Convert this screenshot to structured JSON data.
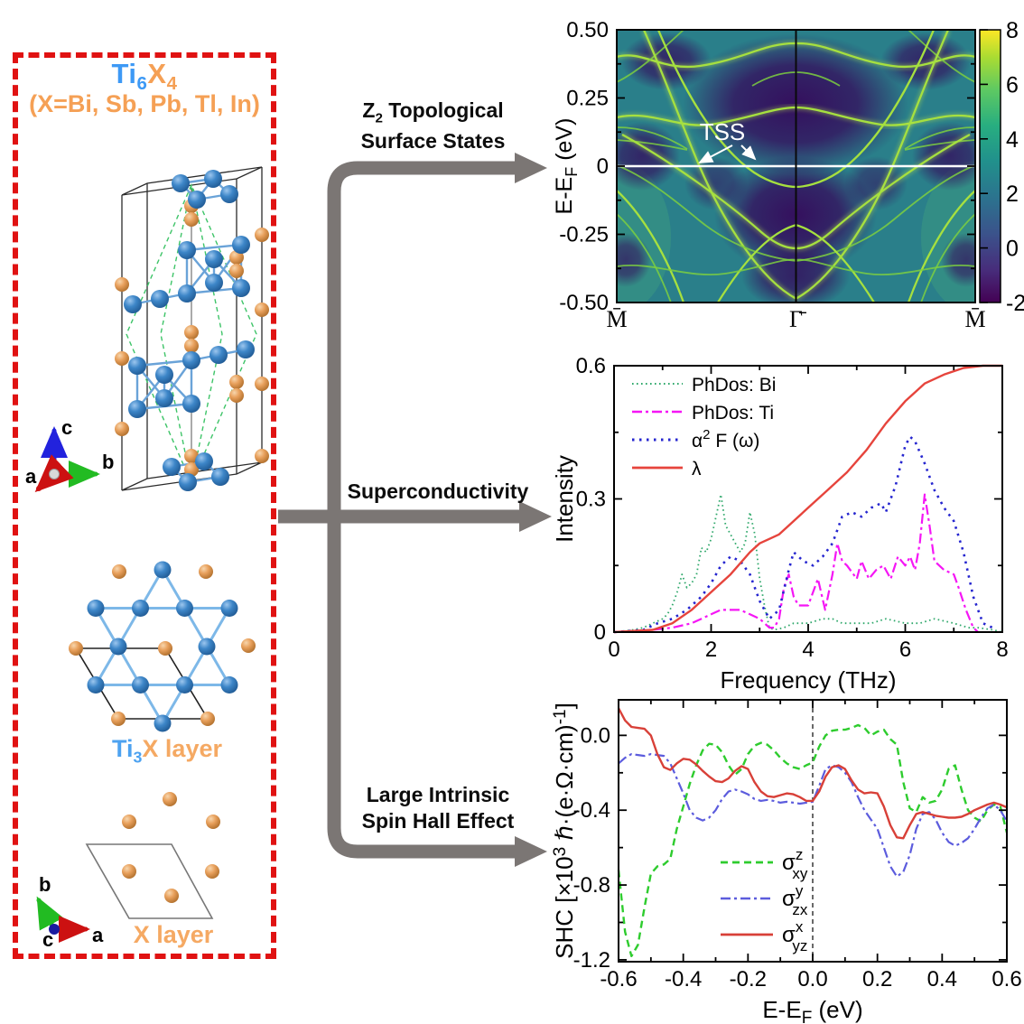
{
  "left_panel": {
    "box_color": "#e01212",
    "title_parts": [
      {
        "t": "Ti",
        "color": "#3d99f5"
      },
      {
        "t": "6",
        "color": "#3d99f5",
        "sub": true
      },
      {
        "t": "X",
        "color": "#f5a055"
      },
      {
        "t": "4",
        "color": "#f5a055",
        "sub": true
      }
    ],
    "subtitle": "(X=Bi, Sb, Pb, Tl, In)",
    "subtitle_color": "#f5a055",
    "triad3d": {
      "a": "a",
      "b": "b",
      "c": "c"
    },
    "triad2d": {
      "a": "a",
      "b": "b",
      "c": "c"
    },
    "ti3x_label_parts": [
      {
        "t": "Ti",
        "color": "#4da2f0"
      },
      {
        "t": "3",
        "color": "#4da2f0",
        "sub": true
      },
      {
        "t": "X layer",
        "color": "#f5a963"
      }
    ],
    "x_layer_label": "X layer",
    "x_layer_label_color": "#f5a963",
    "atom_colors": {
      "ti": "#3d86c8",
      "x": "#e8a05c"
    }
  },
  "arrows": {
    "color": "#7b7674",
    "top_label_parts": [
      {
        "t": "Z"
      },
      {
        "t": "2",
        "sub": true
      },
      {
        "t": " Topological"
      }
    ],
    "top_label_line2": "Surface States",
    "middle_label": "Superconductivity",
    "bottom_label_line1": "Large Intrinsic",
    "bottom_label_line2": "Spin Hall Effect"
  },
  "chart_data": [
    {
      "id": "band",
      "type": "heatmap",
      "description": "Surface spectral function along M̄–Γ̄–M̄ showing topological surface states (TSS) crossing the Fermi level; dark purple = low intensity, yellow-green = high intensity bands",
      "ylabel_parts": [
        {
          "t": "E-E"
        },
        {
          "t": "F",
          "dy": 6,
          "fs": 0.72
        },
        {
          "t": " (eV)",
          "dy": -6
        }
      ],
      "ylim": [
        -0.5,
        0.5
      ],
      "ytick_values": [
        0.5,
        0.25,
        0,
        -0.25,
        -0.5
      ],
      "ytick_labels": [
        "0.50",
        "0.25",
        "0",
        "-0.25",
        "-0.50"
      ],
      "yminor": [
        0.375,
        0.125,
        -0.125,
        -0.375
      ],
      "xtick_labels": [
        "M̄",
        "Γ̄",
        "M̄"
      ],
      "fermi_level_line": 0,
      "annotation": "TSS",
      "colorbar": {
        "range": [
          -2,
          8
        ],
        "tick_values": [
          8,
          6,
          4,
          2,
          0,
          -2
        ],
        "tick_labels": [
          "8",
          "6",
          "4",
          "2",
          "0",
          "-2"
        ],
        "colormap": "viridis"
      }
    },
    {
      "id": "phonon",
      "type": "line",
      "xlabel": "Frequency (THz)",
      "ylabel": "Intensity",
      "xlim": [
        0,
        8
      ],
      "ylim": [
        0,
        0.6
      ],
      "xtick_values": [
        0,
        2,
        4,
        6,
        8
      ],
      "xtick_labels": [
        "0",
        "2",
        "4",
        "6",
        "8"
      ],
      "xminor": [
        1,
        3,
        5,
        7
      ],
      "ytick_values": [
        0,
        0.3,
        0.6
      ],
      "ytick_labels": [
        "0",
        "0.3",
        "0.6"
      ],
      "yminor": [
        0.15,
        0.45
      ],
      "legend_position": "top-left",
      "series": [
        {
          "name": "PhDos: Bi",
          "name_parts": [
            {
              "t": "PhDos: Bi"
            }
          ],
          "color": "#2fa86b",
          "style": "dotted-fine",
          "x": [
            0,
            0.4,
            0.6,
            0.8,
            1.0,
            1.1,
            1.2,
            1.3,
            1.4,
            1.5,
            1.6,
            1.7,
            1.8,
            1.9,
            2.0,
            2.1,
            2.2,
            2.3,
            2.4,
            2.5,
            2.6,
            2.7,
            2.8,
            2.9,
            3.0,
            3.1,
            3.2,
            3.3,
            3.5,
            3.7,
            4.0,
            4.3,
            4.5,
            4.7,
            5.0,
            5.3,
            5.6,
            6.0,
            6.3,
            6.6,
            7.0,
            7.3,
            7.5,
            7.8,
            8.0
          ],
          "y": [
            0,
            0.005,
            0.01,
            0.02,
            0.03,
            0.04,
            0.06,
            0.09,
            0.13,
            0.1,
            0.11,
            0.13,
            0.19,
            0.18,
            0.21,
            0.26,
            0.31,
            0.24,
            0.22,
            0.2,
            0.18,
            0.2,
            0.27,
            0.22,
            0.12,
            0.06,
            0.01,
            0.005,
            0.01,
            0.02,
            0.02,
            0.03,
            0.03,
            0.02,
            0.02,
            0.02,
            0.03,
            0.02,
            0.02,
            0.03,
            0.02,
            0.01,
            0.01,
            0.005,
            0
          ]
        },
        {
          "name": "PhDos: Ti",
          "name_parts": [
            {
              "t": "PhDos: Ti"
            }
          ],
          "color": "#f516f5",
          "style": "dashdot",
          "x": [
            0,
            0.8,
            1.2,
            1.6,
            2.0,
            2.2,
            2.4,
            2.6,
            2.8,
            3.0,
            3.2,
            3.3,
            3.4,
            3.5,
            3.6,
            3.7,
            3.8,
            4.0,
            4.1,
            4.2,
            4.35,
            4.5,
            4.6,
            4.7,
            4.8,
            5.0,
            5.1,
            5.25,
            5.4,
            5.55,
            5.7,
            5.85,
            6.0,
            6.1,
            6.2,
            6.3,
            6.4,
            6.5,
            6.6,
            6.8,
            7.0,
            7.1,
            7.25,
            7.4,
            7.5
          ],
          "y": [
            0,
            0.005,
            0.01,
            0.02,
            0.04,
            0.05,
            0.05,
            0.05,
            0.04,
            0.03,
            0.01,
            0.01,
            0.03,
            0.1,
            0.13,
            0.08,
            0.06,
            0.06,
            0.09,
            0.12,
            0.05,
            0.13,
            0.2,
            0.16,
            0.15,
            0.12,
            0.16,
            0.12,
            0.14,
            0.15,
            0.12,
            0.17,
            0.15,
            0.17,
            0.14,
            0.2,
            0.31,
            0.24,
            0.16,
            0.14,
            0.13,
            0.1,
            0.05,
            0.01,
            0
          ]
        },
        {
          "name": "α² F (ω)",
          "name_parts": [
            {
              "t": "α"
            },
            {
              "t": "2",
              "dy": -9,
              "fs": 0.7
            },
            {
              "t": " F (ω)",
              "dy": 9
            }
          ],
          "color": "#2525cf",
          "style": "dotted",
          "x": [
            0,
            0.6,
            0.9,
            1.2,
            1.5,
            1.8,
            2.0,
            2.2,
            2.4,
            2.6,
            2.8,
            3.0,
            3.2,
            3.4,
            3.6,
            3.7,
            3.9,
            4.1,
            4.3,
            4.5,
            4.7,
            4.9,
            5.1,
            5.3,
            5.5,
            5.6,
            5.8,
            6.0,
            6.1,
            6.2,
            6.4,
            6.6,
            6.8,
            7.0,
            7.2,
            7.4,
            7.6,
            7.8
          ],
          "y": [
            0,
            0.005,
            0.02,
            0.03,
            0.05,
            0.08,
            0.11,
            0.15,
            0.17,
            0.16,
            0.13,
            0.07,
            0.03,
            0.05,
            0.14,
            0.18,
            0.16,
            0.15,
            0.17,
            0.2,
            0.26,
            0.27,
            0.26,
            0.28,
            0.29,
            0.27,
            0.33,
            0.42,
            0.44,
            0.43,
            0.38,
            0.32,
            0.28,
            0.25,
            0.18,
            0.08,
            0.02,
            0.01
          ]
        },
        {
          "name": "λ",
          "name_parts": [
            {
              "t": "λ"
            }
          ],
          "color": "#e6443c",
          "style": "solid",
          "x": [
            0,
            0.8,
            1.2,
            1.6,
            2.0,
            2.4,
            2.8,
            3.0,
            3.2,
            3.4,
            3.6,
            4.0,
            4.4,
            4.8,
            5.2,
            5.6,
            6.0,
            6.4,
            6.8,
            7.2,
            7.6,
            8.0
          ],
          "y": [
            0,
            0.005,
            0.02,
            0.05,
            0.09,
            0.13,
            0.18,
            0.2,
            0.21,
            0.22,
            0.24,
            0.28,
            0.32,
            0.36,
            0.41,
            0.47,
            0.52,
            0.56,
            0.58,
            0.595,
            0.6,
            0.6
          ]
        }
      ]
    },
    {
      "id": "shc",
      "type": "line",
      "xlabel_parts": [
        {
          "t": "E-E"
        },
        {
          "t": "F",
          "dy": 6,
          "fs": 0.72
        },
        {
          "t": " (eV)",
          "dy": -6
        }
      ],
      "ylabel_parts": [
        {
          "t": "SHC [×10"
        },
        {
          "t": "3",
          "dy": -8,
          "fs": 0.72
        },
        {
          "t": " ℏ·(e·Ω·cm)",
          "dy": 8
        },
        {
          "t": "-1",
          "dy": -8,
          "fs": 0.72
        },
        {
          "t": "]",
          "dy": 8
        }
      ],
      "xlim": [
        -0.6,
        0.6
      ],
      "ylim": [
        -1.21,
        0.19
      ],
      "xtick_values": [
        -0.6,
        -0.4,
        -0.2,
        0,
        0.2,
        0.4,
        0.6
      ],
      "xtick_labels": [
        "-0.6",
        "-0.4",
        "-0.2",
        "0.0",
        "0.2",
        "0.4",
        "0.6"
      ],
      "xminor": [
        -0.5,
        -0.3,
        -0.1,
        0.1,
        0.3,
        0.5
      ],
      "ytick_values": [
        0,
        -0.4,
        -0.8,
        -1.2
      ],
      "ytick_labels": [
        "0.0",
        "-0.4",
        "-0.8",
        "-1.2"
      ],
      "yminor": [
        -0.2,
        -0.6,
        -1.0
      ],
      "vline_x": 0,
      "legend_position": "bottom-center",
      "x": [
        -0.6,
        -0.58,
        -0.56,
        -0.54,
        -0.52,
        -0.5,
        -0.48,
        -0.46,
        -0.44,
        -0.42,
        -0.4,
        -0.38,
        -0.36,
        -0.34,
        -0.32,
        -0.3,
        -0.28,
        -0.26,
        -0.24,
        -0.22,
        -0.2,
        -0.18,
        -0.16,
        -0.14,
        -0.12,
        -0.1,
        -0.08,
        -0.06,
        -0.04,
        -0.02,
        0,
        0.02,
        0.04,
        0.06,
        0.08,
        0.1,
        0.12,
        0.14,
        0.16,
        0.18,
        0.2,
        0.22,
        0.24,
        0.26,
        0.28,
        0.3,
        0.32,
        0.34,
        0.36,
        0.38,
        0.4,
        0.42,
        0.44,
        0.46,
        0.48,
        0.5,
        0.52,
        0.54,
        0.56,
        0.58,
        0.6
      ],
      "series": [
        {
          "name": "σ_xy^z",
          "name_parts": [
            {
              "t": "σ"
            },
            {
              "t": "z",
              "dy": -11,
              "fs": 0.7
            },
            {
              "t": "xy",
              "dx": -12,
              "dy": 21,
              "fs": 0.7
            }
          ],
          "color": "#2ecc2e",
          "style": "dashed",
          "y": [
            -0.72,
            -1.05,
            -1.18,
            -1.12,
            -0.92,
            -0.74,
            -0.7,
            -0.69,
            -0.66,
            -0.5,
            -0.38,
            -0.26,
            -0.16,
            -0.08,
            -0.045,
            -0.05,
            -0.09,
            -0.16,
            -0.21,
            -0.18,
            -0.1,
            -0.055,
            -0.04,
            -0.05,
            -0.08,
            -0.12,
            -0.15,
            -0.17,
            -0.18,
            -0.16,
            -0.145,
            -0.06,
            0.0,
            0.025,
            0.03,
            0.03,
            0.04,
            0.055,
            0.04,
            0.0,
            0.02,
            0.03,
            -0.02,
            -0.05,
            -0.25,
            -0.39,
            -0.41,
            -0.33,
            -0.36,
            -0.35,
            -0.29,
            -0.18,
            -0.16,
            -0.29,
            -0.4,
            -0.44,
            -0.46,
            -0.4,
            -0.37,
            -0.38,
            -0.52
          ]
        },
        {
          "name": "σ_zx^y",
          "name_parts": [
            {
              "t": "σ"
            },
            {
              "t": "y",
              "dy": -11,
              "fs": 0.7
            },
            {
              "t": "zx",
              "dx": -12,
              "dy": 21,
              "fs": 0.7
            }
          ],
          "color": "#5c5cdd",
          "style": "dashdot",
          "y": [
            -0.15,
            -0.12,
            -0.1,
            -0.105,
            -0.11,
            -0.1,
            -0.105,
            -0.11,
            -0.15,
            -0.23,
            -0.31,
            -0.4,
            -0.44,
            -0.455,
            -0.44,
            -0.4,
            -0.34,
            -0.3,
            -0.29,
            -0.3,
            -0.315,
            -0.34,
            -0.35,
            -0.345,
            -0.35,
            -0.36,
            -0.355,
            -0.36,
            -0.365,
            -0.36,
            -0.355,
            -0.27,
            -0.18,
            -0.16,
            -0.17,
            -0.2,
            -0.25,
            -0.33,
            -0.4,
            -0.45,
            -0.5,
            -0.6,
            -0.7,
            -0.755,
            -0.73,
            -0.64,
            -0.5,
            -0.42,
            -0.41,
            -0.45,
            -0.52,
            -0.57,
            -0.59,
            -0.575,
            -0.55,
            -0.5,
            -0.44,
            -0.39,
            -0.37,
            -0.4,
            -0.46
          ]
        },
        {
          "name": "σ_yz^x",
          "name_parts": [
            {
              "t": "σ"
            },
            {
              "t": "x",
              "dy": -11,
              "fs": 0.7
            },
            {
              "t": "yz",
              "dx": -12,
              "dy": 21,
              "fs": 0.7
            }
          ],
          "color": "#d84038",
          "style": "solid",
          "y": [
            0.145,
            0.08,
            0.045,
            0.04,
            0.035,
            0.0,
            -0.1,
            -0.17,
            -0.185,
            -0.15,
            -0.125,
            -0.13,
            -0.155,
            -0.19,
            -0.22,
            -0.245,
            -0.25,
            -0.23,
            -0.19,
            -0.165,
            -0.18,
            -0.25,
            -0.3,
            -0.325,
            -0.33,
            -0.32,
            -0.31,
            -0.315,
            -0.33,
            -0.35,
            -0.35,
            -0.3,
            -0.22,
            -0.17,
            -0.16,
            -0.18,
            -0.24,
            -0.29,
            -0.31,
            -0.305,
            -0.31,
            -0.38,
            -0.48,
            -0.545,
            -0.55,
            -0.48,
            -0.42,
            -0.41,
            -0.42,
            -0.43,
            -0.435,
            -0.44,
            -0.44,
            -0.435,
            -0.42,
            -0.4,
            -0.385,
            -0.37,
            -0.36,
            -0.37,
            -0.385
          ]
        }
      ]
    }
  ]
}
